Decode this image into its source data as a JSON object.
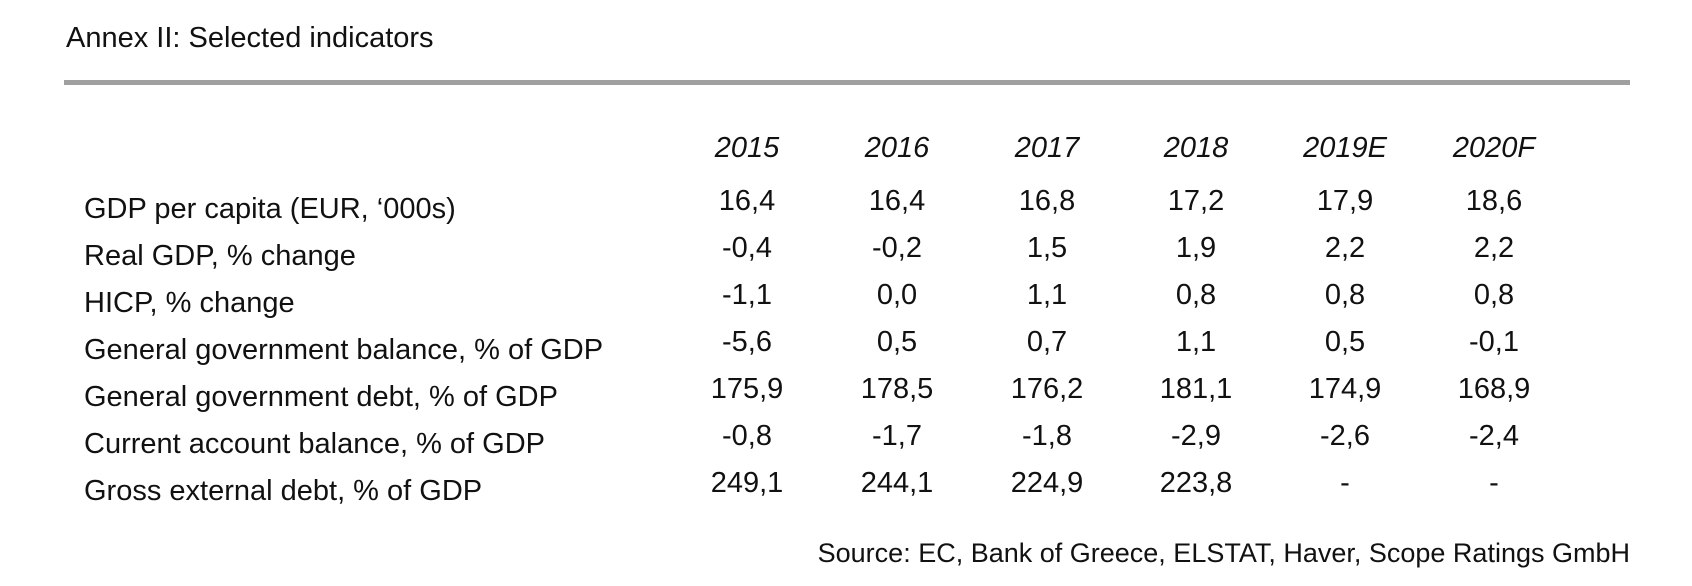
{
  "chart_data": {
    "type": "table",
    "title": "Annex II: Selected indicators",
    "columns": [
      "2015",
      "2016",
      "2017",
      "2018",
      "2019E",
      "2020F"
    ],
    "rows": [
      {
        "label": "GDP per capita (EUR, ‘000s)",
        "values": [
          "16,4",
          "16,4",
          "16,8",
          "17,2",
          "17,9",
          "18,6"
        ]
      },
      {
        "label": "Real GDP, % change",
        "values": [
          "-0,4",
          "-0,2",
          "1,5",
          "1,9",
          "2,2",
          "2,2"
        ]
      },
      {
        "label": "HICP, % change",
        "values": [
          "-1,1",
          "0,0",
          "1,1",
          "0,8",
          "0,8",
          "0,8"
        ]
      },
      {
        "label": "General government balance, % of GDP",
        "values": [
          "-5,6",
          "0,5",
          "0,7",
          "1,1",
          "0,5",
          "-0,1"
        ]
      },
      {
        "label": "General government debt, % of GDP",
        "values": [
          "175,9",
          "178,5",
          "176,2",
          "181,1",
          "174,9",
          "168,9"
        ]
      },
      {
        "label": "Current account balance, % of GDP",
        "values": [
          "-0,8",
          "-1,7",
          "-1,8",
          "-2,9",
          "-2,6",
          "-2,4"
        ]
      },
      {
        "label": "Gross external debt, % of GDP",
        "values": [
          "249,1",
          "244,1",
          "224,9",
          "223,8",
          "-",
          "-"
        ]
      }
    ],
    "source": "Source: EC, Bank of Greece, ELSTAT, Haver, Scope Ratings GmbH"
  }
}
